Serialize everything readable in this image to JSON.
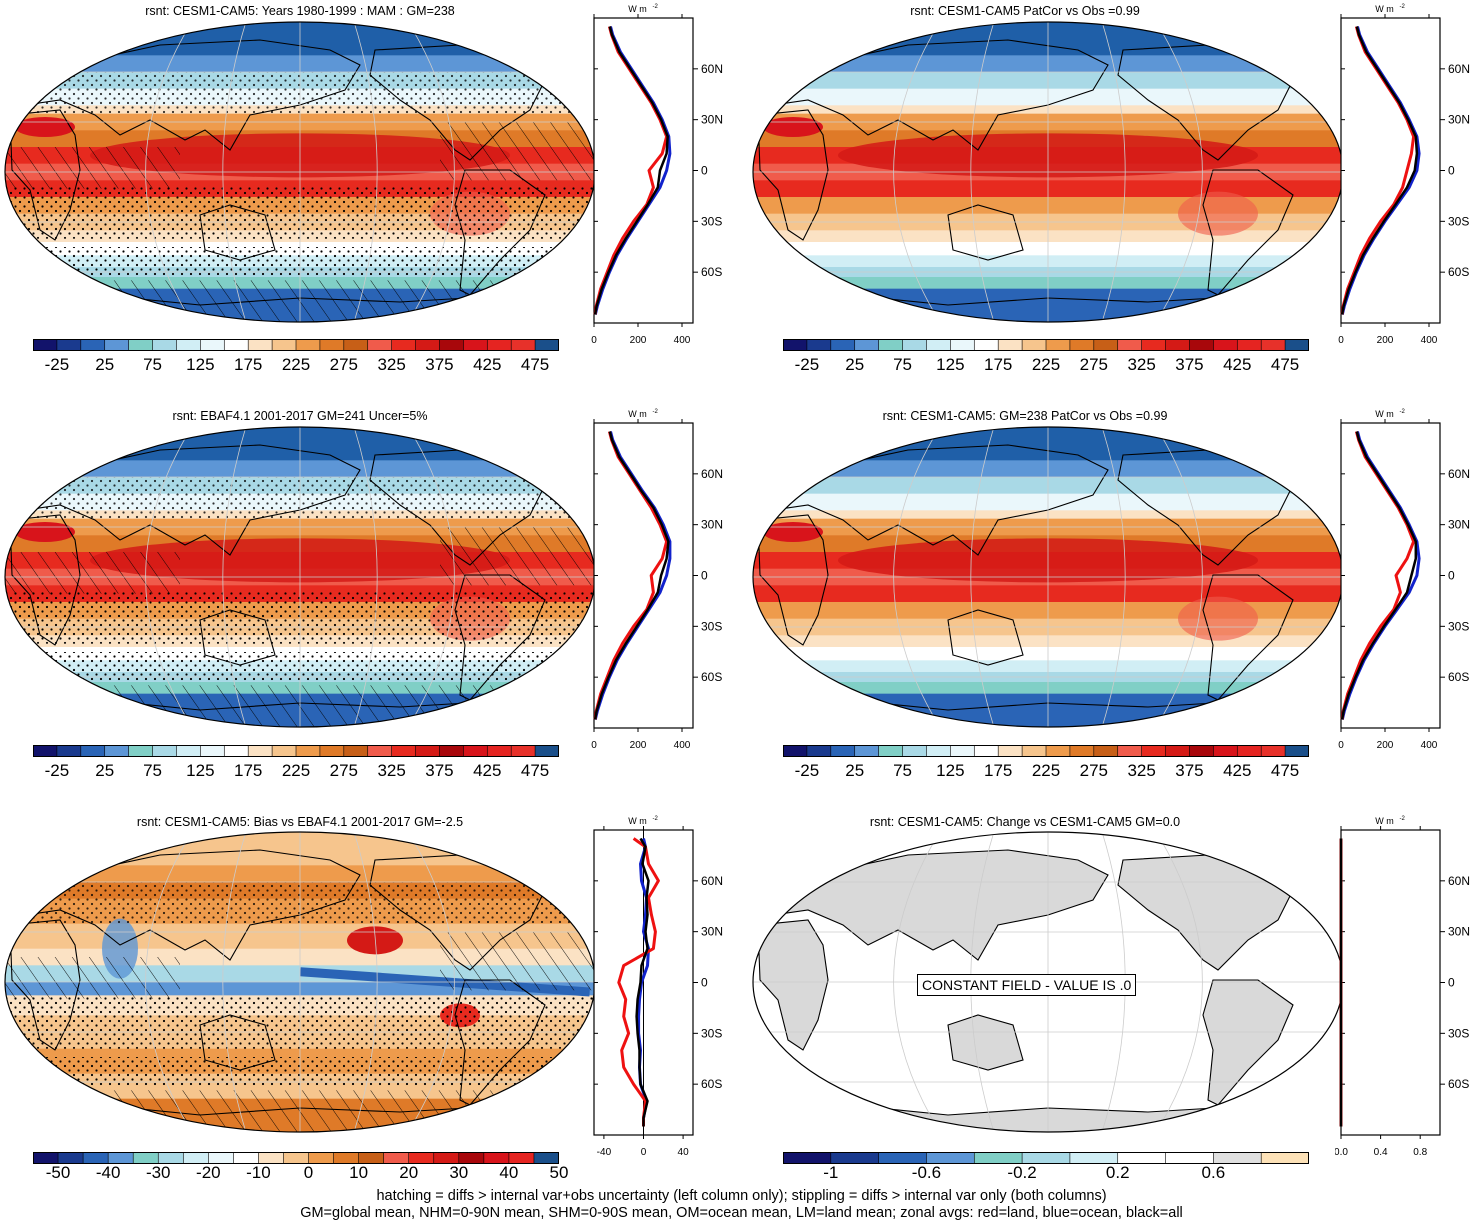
{
  "palette": {
    "abs": [
      "#12136b",
      "#1a3a8e",
      "#2a64b6",
      "#5d96d6",
      "#80cfc6",
      "#a9d9e6",
      "#d1eef5",
      "#eaf7fb",
      "#ffffff",
      "#fbe2c4",
      "#f6c58d",
      "#ee9b4c",
      "#df7a28",
      "#c75f17",
      "#f05b4b",
      "#e72a1f",
      "#d41a16",
      "#a8070b",
      "#d8141b",
      "#e52421",
      "#e7312a",
      "#1a4f8a"
    ],
    "bias": [
      "#12136b",
      "#1a3a8e",
      "#2a64b6",
      "#5d96d6",
      "#80cfc6",
      "#a9d9e6",
      "#d1eef5",
      "#eaf7fb",
      "#ffffff",
      "#fbe2c4",
      "#f6c58d",
      "#ee9b4c",
      "#df7a28",
      "#c75f17",
      "#f05b4b",
      "#e72a1f",
      "#d41a16",
      "#a8070b",
      "#d8141b",
      "#e52421",
      "#1a4f8a"
    ],
    "change": [
      "#12136b",
      "#1a3a8e",
      "#2a64b6",
      "#5d96d6",
      "#80cfc6",
      "#a9d9e6",
      "#d1eef5",
      "#ffffff",
      "#ffffff",
      "#e0e0e0",
      "#fde2b8"
    ],
    "land": "#000000",
    "zonal_land": "#ee1111",
    "zonal_ocean": "#1122cc",
    "zonal_all": "#000000",
    "grey_land": "#d9d9d9"
  },
  "chart_data": [
    {
      "id": "p1",
      "type": "heatmap",
      "title": "rsnt: CESM1-CAM5: Years 1980-1999 : MAM : GM=238",
      "colorbar_labels": [
        "-25",
        "25",
        "75",
        "125",
        "175",
        "225",
        "275",
        "325",
        "375",
        "425",
        "475"
      ],
      "colorbar": "abs",
      "overlay": "hatch+stipple",
      "zonal": {
        "xticks": [
          "0",
          "200",
          "400"
        ],
        "xlim": [
          0,
          450
        ],
        "unit": "W m",
        "unit_exp": "-2",
        "yticks": [
          "60N",
          "30N",
          "0",
          "30S",
          "60S"
        ],
        "lat": [
          85,
          80,
          70,
          60,
          50,
          40,
          30,
          20,
          10,
          0,
          -10,
          -20,
          -30,
          -40,
          -50,
          -60,
          -70,
          -80,
          -85
        ],
        "land": [
          70,
          80,
          110,
          160,
          210,
          260,
          300,
          330,
          310,
          250,
          270,
          240,
          180,
          130,
          90,
          60,
          30,
          10,
          5
        ],
        "ocean": [
          75,
          85,
          120,
          170,
          220,
          270,
          310,
          340,
          345,
          330,
          300,
          250,
          200,
          150,
          105,
          70,
          40,
          15,
          6
        ],
        "all": [
          72,
          82,
          115,
          165,
          215,
          265,
          305,
          335,
          330,
          300,
          290,
          245,
          195,
          145,
          100,
          66,
          35,
          12,
          5
        ]
      }
    },
    {
      "id": "p2",
      "type": "heatmap",
      "title": "rsnt: CESM1-CAM5 PatCor vs Obs =0.99",
      "colorbar_labels": [
        "-25",
        "25",
        "75",
        "125",
        "175",
        "225",
        "275",
        "325",
        "375",
        "425",
        "475"
      ],
      "colorbar": "abs",
      "overlay": "none",
      "zonal": {
        "xticks": [
          "0",
          "200",
          "400"
        ],
        "xlim": [
          0,
          450
        ],
        "unit": "W m",
        "unit_exp": "-2",
        "yticks": [
          "60N",
          "30N",
          "0",
          "30S",
          "60S"
        ],
        "lat": [
          85,
          80,
          70,
          60,
          50,
          40,
          30,
          20,
          10,
          0,
          -10,
          -20,
          -30,
          -40,
          -50,
          -60,
          -70,
          -80,
          -85
        ],
        "land": [
          70,
          80,
          110,
          160,
          210,
          260,
          300,
          330,
          320,
          300,
          280,
          240,
          180,
          130,
          90,
          60,
          30,
          10,
          5
        ],
        "ocean": [
          75,
          85,
          120,
          170,
          220,
          270,
          310,
          345,
          355,
          345,
          310,
          255,
          200,
          150,
          105,
          70,
          40,
          15,
          6
        ],
        "all": [
          72,
          82,
          115,
          165,
          215,
          265,
          305,
          340,
          345,
          335,
          300,
          248,
          195,
          145,
          100,
          66,
          35,
          12,
          5
        ]
      }
    },
    {
      "id": "p3",
      "type": "heatmap",
      "title": "rsnt: EBAF4.1 2001-2017 GM=241 Uncer=5%",
      "colorbar_labels": [
        "-25",
        "25",
        "75",
        "125",
        "175",
        "225",
        "275",
        "325",
        "375",
        "425",
        "475"
      ],
      "colorbar": "abs",
      "overlay": "hatch+stipple",
      "zonal": {
        "xticks": [
          "0",
          "200",
          "400"
        ],
        "xlim": [
          0,
          450
        ],
        "unit": "W m",
        "unit_exp": "-2",
        "yticks": [
          "60N",
          "30N",
          "0",
          "30S",
          "60S"
        ],
        "lat": [
          85,
          80,
          70,
          60,
          50,
          40,
          30,
          20,
          10,
          0,
          -10,
          -20,
          -30,
          -40,
          -50,
          -60,
          -70,
          -80,
          -85
        ],
        "land": [
          70,
          80,
          110,
          160,
          210,
          260,
          300,
          330,
          310,
          260,
          270,
          240,
          180,
          130,
          90,
          60,
          30,
          10,
          5
        ],
        "ocean": [
          75,
          85,
          120,
          170,
          220,
          275,
          315,
          345,
          345,
          330,
          300,
          250,
          200,
          150,
          105,
          70,
          40,
          15,
          6
        ],
        "all": [
          72,
          82,
          115,
          165,
          215,
          270,
          308,
          338,
          330,
          305,
          290,
          245,
          195,
          145,
          100,
          66,
          35,
          12,
          5
        ]
      }
    },
    {
      "id": "p4",
      "type": "heatmap",
      "title": "rsnt: CESM1-CAM5: GM=238 PatCor vs Obs =0.99",
      "colorbar_labels": [
        "-25",
        "25",
        "75",
        "125",
        "175",
        "225",
        "275",
        "325",
        "375",
        "425",
        "475"
      ],
      "colorbar": "abs",
      "overlay": "none",
      "zonal": {
        "xticks": [
          "0",
          "200",
          "400"
        ],
        "xlim": [
          0,
          450
        ],
        "unit": "W m",
        "unit_exp": "-2",
        "yticks": [
          "60N",
          "30N",
          "0",
          "30S",
          "60S"
        ],
        "lat": [
          85,
          80,
          70,
          60,
          50,
          40,
          30,
          20,
          10,
          0,
          -10,
          -20,
          -30,
          -40,
          -50,
          -60,
          -70,
          -80,
          -85
        ],
        "land": [
          70,
          80,
          110,
          160,
          210,
          260,
          300,
          330,
          300,
          250,
          270,
          240,
          180,
          130,
          90,
          60,
          30,
          10,
          5
        ],
        "ocean": [
          75,
          85,
          120,
          170,
          220,
          270,
          310,
          345,
          355,
          345,
          310,
          255,
          200,
          150,
          105,
          70,
          40,
          15,
          6
        ],
        "all": [
          72,
          82,
          115,
          165,
          215,
          265,
          305,
          340,
          340,
          320,
          300,
          248,
          195,
          145,
          100,
          66,
          35,
          12,
          5
        ]
      }
    },
    {
      "id": "p5",
      "type": "heatmap",
      "title": "rsnt: CESM1-CAM5: Bias vs EBAF4.1 2001-2017 GM=-2.5",
      "colorbar_labels": [
        "-50",
        "-40",
        "-30",
        "-20",
        "-10",
        "0",
        "10",
        "20",
        "30",
        "40",
        "50"
      ],
      "colorbar": "bias",
      "overlay": "hatch+stipple",
      "zonal": {
        "xticks": [
          "-40",
          "0",
          "40"
        ],
        "xlim": [
          -50,
          50
        ],
        "unit": "W m",
        "unit_exp": "-2",
        "yticks": [
          "60N",
          "30N",
          "0",
          "30S",
          "60S"
        ],
        "lat": [
          85,
          80,
          70,
          60,
          50,
          40,
          30,
          20,
          10,
          0,
          -10,
          -20,
          -30,
          -40,
          -50,
          -60,
          -70,
          -80,
          -85
        ],
        "land": [
          -10,
          2,
          5,
          15,
          5,
          8,
          12,
          10,
          -20,
          -25,
          -18,
          -20,
          -15,
          -22,
          -20,
          -10,
          2,
          0,
          0
        ],
        "ocean": [
          0,
          2,
          -3,
          -2,
          3,
          2,
          0,
          5,
          4,
          -2,
          -4,
          -5,
          -5,
          -3,
          -4,
          -3,
          3,
          0,
          0
        ],
        "all": [
          -3,
          2,
          -1,
          5,
          3,
          4,
          2,
          4,
          -2,
          -3,
          -6,
          -7,
          -6,
          -4,
          -4,
          -3,
          4,
          0,
          0
        ]
      }
    },
    {
      "id": "p6",
      "type": "heatmap",
      "title": "rsnt: CESM1-CAM5: Change vs CESM1-CAM5 GM=0.0",
      "colorbar_labels": [
        "-1",
        "-0.6",
        "-0.2",
        "0.2",
        "0.6"
      ],
      "colorbar": "change",
      "overlay": "none",
      "constant_message": "CONSTANT FIELD - VALUE IS .0",
      "zonal": {
        "xticks": [
          "0.0",
          "0.4",
          "0.8"
        ],
        "xlim": [
          0,
          1
        ],
        "unit": "W m",
        "unit_exp": "-2",
        "yticks": [
          "60N",
          "30N",
          "0",
          "30S",
          "60S"
        ],
        "lat": [
          85,
          -85
        ],
        "land": [
          0,
          0
        ],
        "ocean": [
          0,
          0
        ],
        "all": [
          0,
          0
        ]
      }
    }
  ],
  "footnotes": {
    "line1": "hatching = diffs > internal var+obs uncertainty (left column only); stippling = diffs > internal var only (both columns)",
    "line2": "GM=global mean, NHM=0-90N mean, SHM=0-90S mean, OM=ocean mean, LM=land mean; zonal avgs: red=land, blue=ocean, black=all"
  }
}
